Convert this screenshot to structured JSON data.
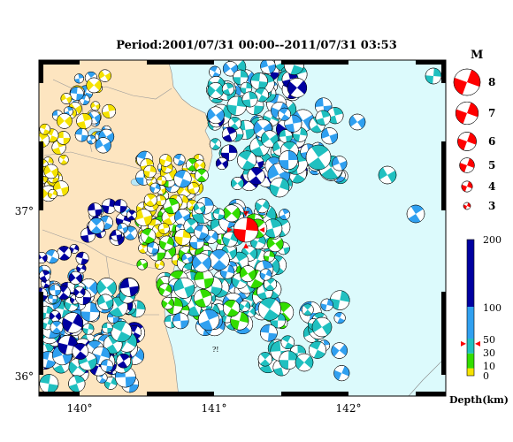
{
  "title": "Period:2001/07/31 00:00--2011/07/31 03:53",
  "axes": {
    "lat_labels": [
      "37°",
      "36°"
    ],
    "lon_labels": [
      "140°",
      "141°",
      "142°"
    ]
  },
  "magnitude_legend": {
    "heading": "M",
    "items": [
      {
        "label": "8",
        "mag": 8
      },
      {
        "label": "7",
        "mag": 7
      },
      {
        "label": "6",
        "mag": 6
      },
      {
        "label": "5",
        "mag": 5
      },
      {
        "label": "4",
        "mag": 4
      },
      {
        "label": "3",
        "mag": 3
      }
    ]
  },
  "depth_scale": {
    "label": "Depth(km)",
    "ticks": [
      "200",
      "100",
      "50",
      "30",
      "10",
      "0"
    ],
    "bands": [
      {
        "from": 0,
        "to": 10,
        "color": "#f5e200"
      },
      {
        "from": 10,
        "to": 30,
        "color": "#33dd00"
      },
      {
        "from": 30,
        "to": 50,
        "color": "#20c0c0"
      },
      {
        "from": 50,
        "to": 100,
        "color": "#30a0f0"
      },
      {
        "from": 100,
        "to": 200,
        "color": "#0000a0"
      }
    ],
    "marker_depth": 43
  },
  "colors": {
    "land": "#fde5c0",
    "sea": "#dcfafc",
    "lake": "#b8e8f8",
    "highlight_event": "#ff0000"
  },
  "unknown_markers": [
    "?!",
    "?!"
  ]
}
